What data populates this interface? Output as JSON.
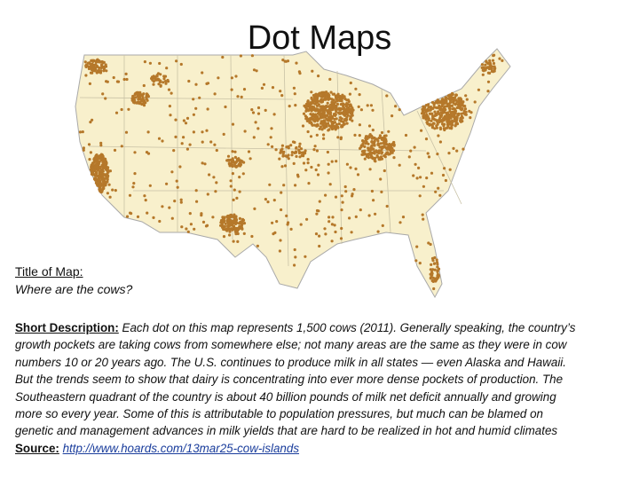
{
  "title": "Dot Maps",
  "map_title": {
    "label": "Title of Map:",
    "text": "Where are the cows?"
  },
  "description": {
    "label": "Short Description:",
    "lines": [
      "Each dot on this map represents 1,500 cows (2011). Generally speaking, the country’s",
      "growth pockets are taking cows from somewhere else; not many areas are the same as they were in cow",
      "numbers 10 or 20 years ago. The U.S. continues to produce milk in all states — even Alaska and Hawaii.",
      "But the trends seem to show that dairy is concentrating into ever more dense pockets of production. The",
      "Southeastern quadrant of the country is about 40 billion pounds of milk net deficit annually and growing",
      "more so every year. Some of this is attributable to population pressures, but much can be blamed on",
      "genetic and management advances in milk yields that are hard to be realized in hot and humid climates"
    ]
  },
  "source": {
    "label": "Source:",
    "url": "http://www.hoards.com/13mar25-cow-islands"
  }
}
